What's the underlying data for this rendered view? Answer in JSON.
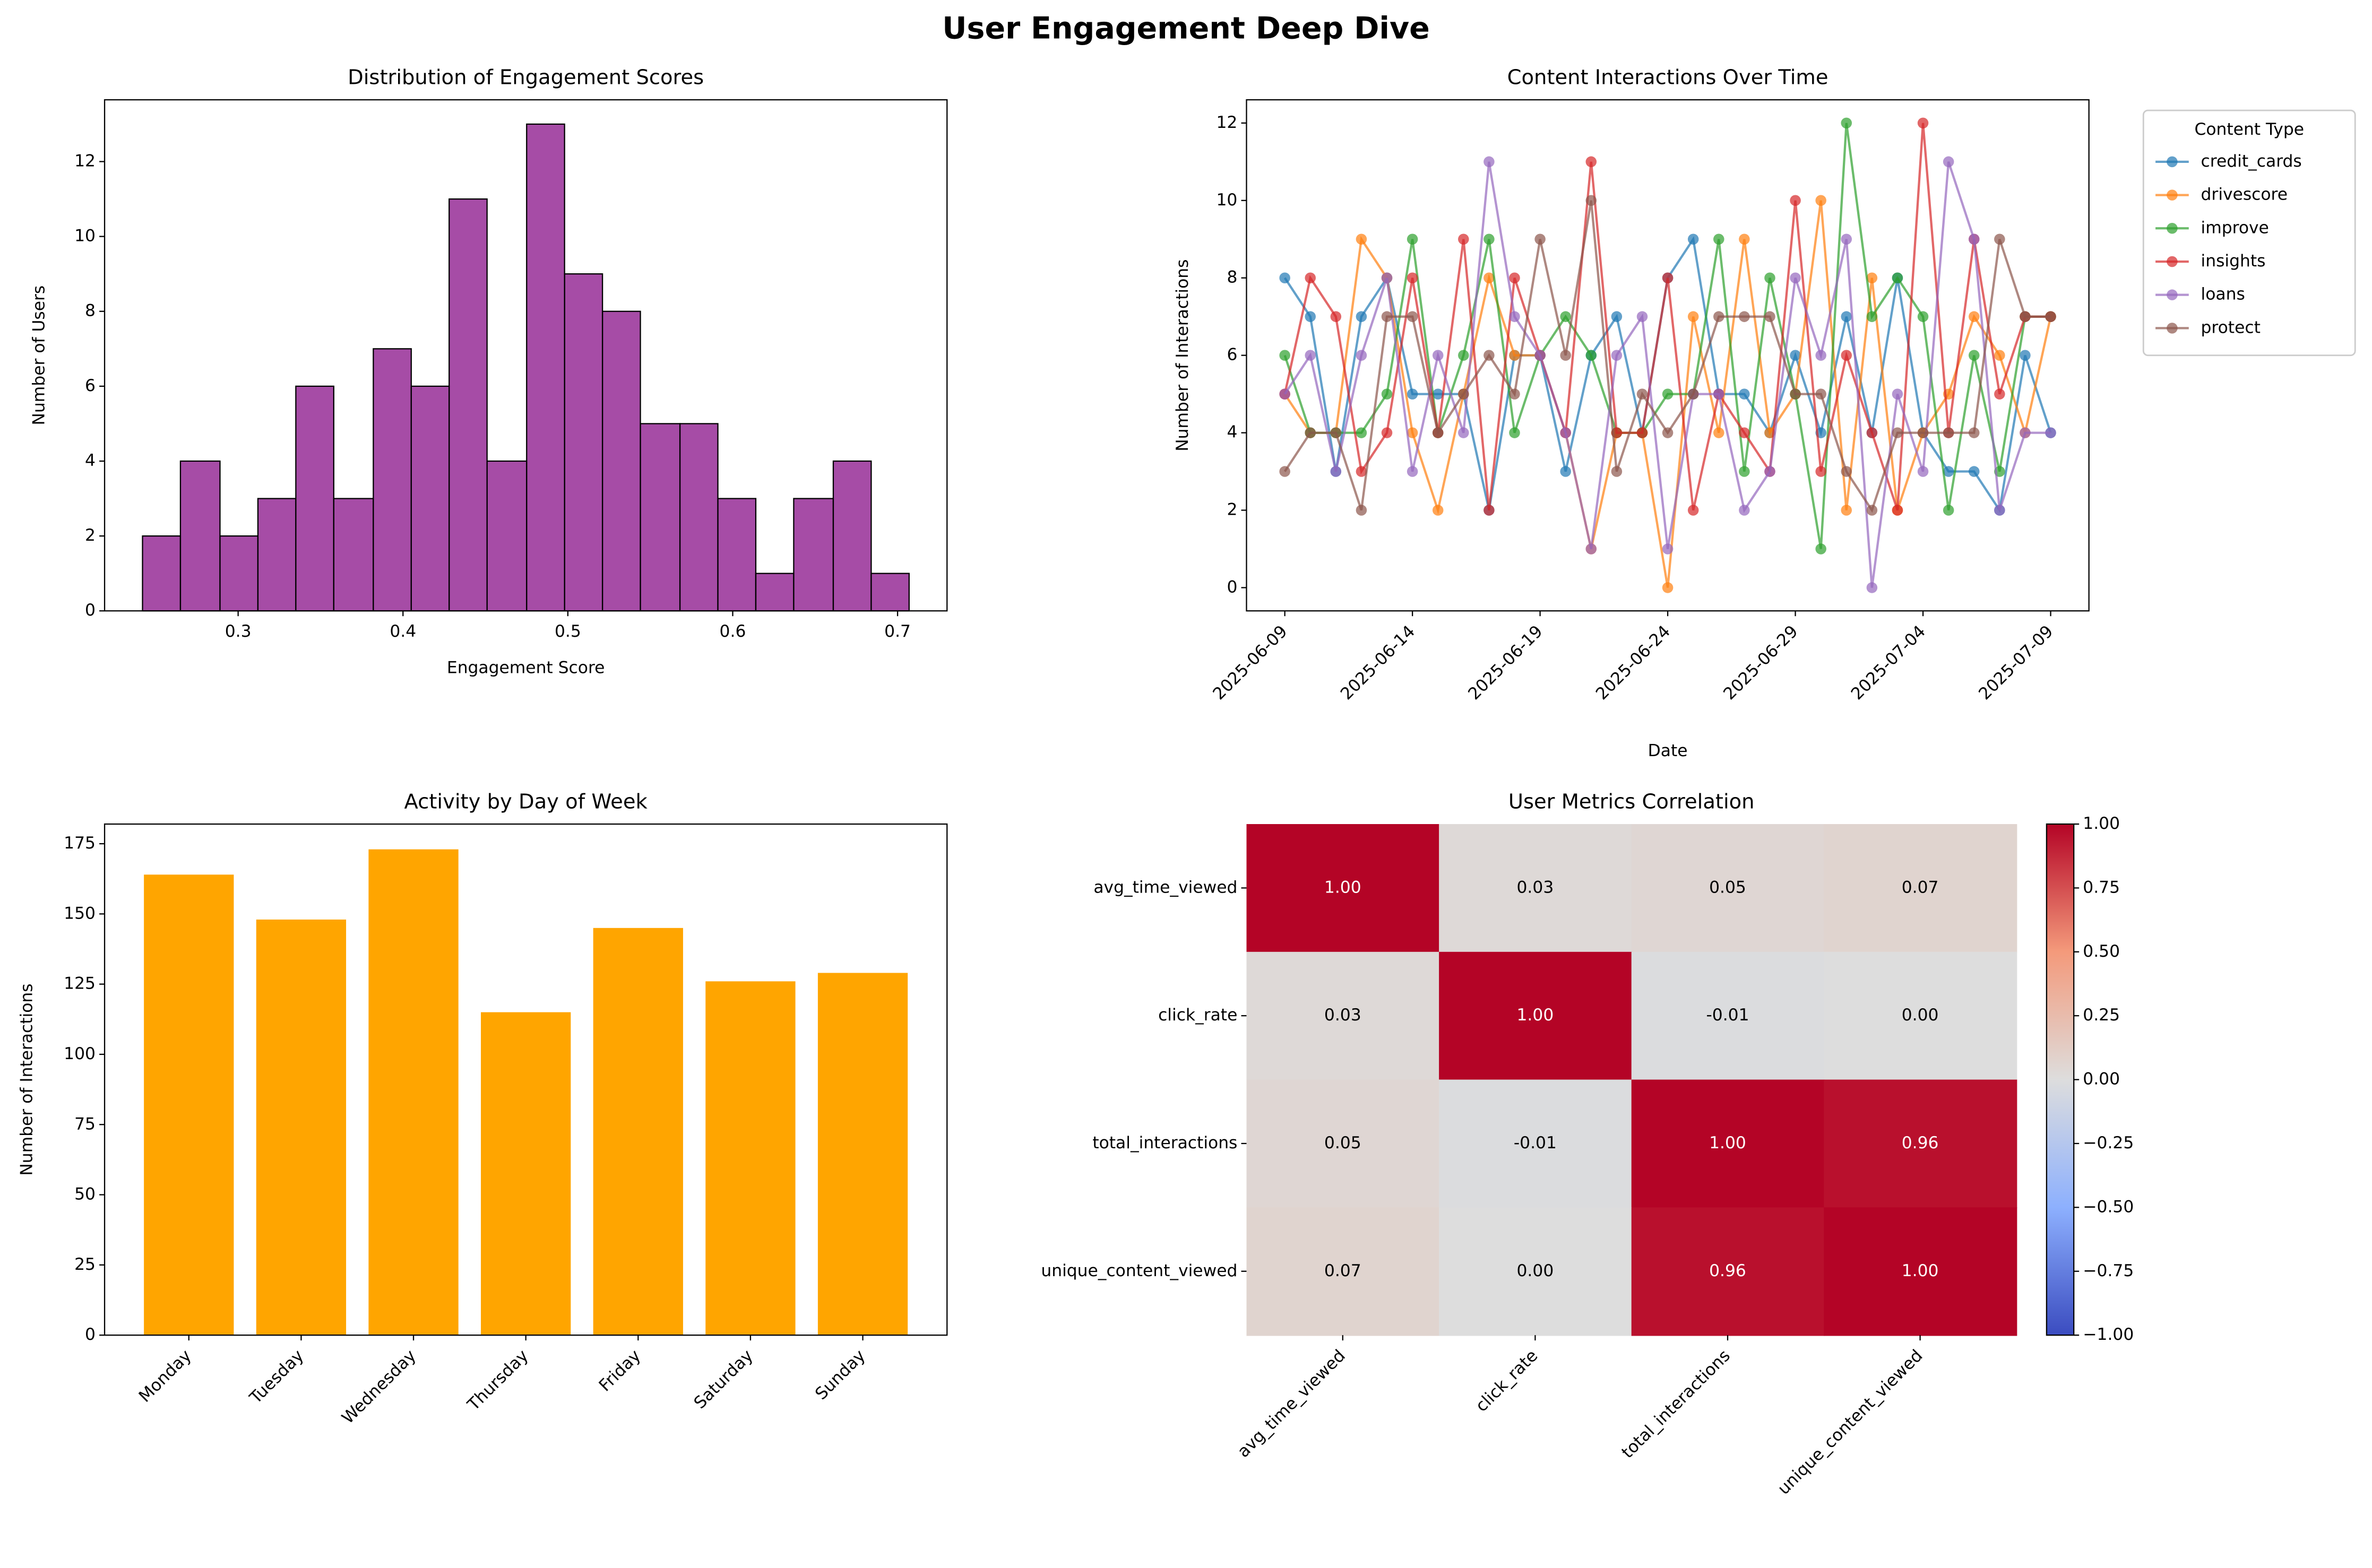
{
  "title": "User Engagement Deep Dive",
  "chart_data": [
    {
      "type": "histogram",
      "title": "Distribution of Engagement Scores",
      "xlabel": "Engagement Score",
      "ylabel": "Number of Users",
      "bins": [
        0.242,
        0.265,
        0.289,
        0.312,
        0.335,
        0.358,
        0.382,
        0.405,
        0.428,
        0.451,
        0.475,
        0.498,
        0.521,
        0.544,
        0.568,
        0.591,
        0.614,
        0.637,
        0.661,
        0.684,
        0.707
      ],
      "counts": [
        2,
        4,
        2,
        3,
        6,
        3,
        7,
        6,
        11,
        4,
        13,
        9,
        8,
        5,
        5,
        3,
        1,
        3,
        4,
        1
      ],
      "color": "#800080",
      "alpha": 0.7,
      "edgecolor": "#000000",
      "xlim": [
        0.219,
        0.73
      ],
      "xticks": [
        0.3,
        0.4,
        0.5,
        0.6,
        0.7
      ],
      "ylim": [
        0,
        13.65
      ],
      "yticks": [
        0,
        2,
        4,
        6,
        8,
        10,
        12
      ]
    },
    {
      "type": "line",
      "title": "Content Interactions Over Time",
      "xlabel": "Date",
      "ylabel": "Number of Interactions",
      "x": [
        "2025-06-09",
        "2025-06-10",
        "2025-06-11",
        "2025-06-12",
        "2025-06-13",
        "2025-06-14",
        "2025-06-15",
        "2025-06-16",
        "2025-06-17",
        "2025-06-18",
        "2025-06-19",
        "2025-06-20",
        "2025-06-21",
        "2025-06-22",
        "2025-06-23",
        "2025-06-24",
        "2025-06-25",
        "2025-06-26",
        "2025-06-27",
        "2025-06-28",
        "2025-06-29",
        "2025-06-30",
        "2025-07-01",
        "2025-07-02",
        "2025-07-03",
        "2025-07-04",
        "2025-07-05",
        "2025-07-06",
        "2025-07-07",
        "2025-07-08",
        "2025-07-09"
      ],
      "series": [
        {
          "name": "credit_cards",
          "color": "#1f77b4",
          "values": [
            8,
            7,
            3,
            7,
            8,
            5,
            5,
            5,
            2,
            6,
            6,
            3,
            6,
            7,
            4,
            8,
            9,
            5,
            5,
            4,
            6,
            4,
            7,
            4,
            8,
            4,
            3,
            3,
            2,
            6,
            4
          ]
        },
        {
          "name": "drivescore",
          "color": "#ff7f0e",
          "values": [
            5,
            4,
            4,
            9,
            8,
            4,
            2,
            5,
            8,
            6,
            6,
            4,
            1,
            4,
            4,
            0,
            7,
            4,
            9,
            4,
            5,
            10,
            2,
            8,
            2,
            4,
            5,
            7,
            6,
            4,
            7
          ]
        },
        {
          "name": "improve",
          "color": "#2ca02c",
          "values": [
            6,
            4,
            4,
            4,
            5,
            9,
            4,
            6,
            9,
            4,
            6,
            7,
            6,
            4,
            4,
            5,
            5,
            9,
            3,
            8,
            5,
            1,
            12,
            7,
            8,
            7,
            2,
            6,
            3,
            7,
            7
          ]
        },
        {
          "name": "insights",
          "color": "#d62728",
          "values": [
            5,
            8,
            7,
            3,
            4,
            8,
            4,
            9,
            2,
            8,
            6,
            4,
            11,
            4,
            4,
            8,
            2,
            5,
            4,
            3,
            10,
            3,
            6,
            4,
            2,
            12,
            4,
            9,
            5,
            7,
            7
          ]
        },
        {
          "name": "loans",
          "color": "#9467bd",
          "values": [
            5,
            6,
            3,
            6,
            8,
            3,
            6,
            4,
            11,
            7,
            6,
            4,
            1,
            6,
            7,
            1,
            5,
            5,
            2,
            3,
            8,
            6,
            9,
            0,
            5,
            3,
            11,
            9,
            2,
            4,
            4
          ]
        },
        {
          "name": "protect",
          "color": "#8c564b",
          "values": [
            3,
            4,
            4,
            2,
            7,
            7,
            4,
            5,
            6,
            5,
            9,
            6,
            10,
            3,
            5,
            4,
            5,
            7,
            7,
            7,
            5,
            5,
            3,
            2,
            4,
            4,
            4,
            4,
            9,
            7,
            7
          ]
        }
      ],
      "alpha": 0.7,
      "legend_title": "Content Type",
      "legend": "outside upper right",
      "xlim": [
        "2025-06-07T12:00",
        "2025-07-10T12:00"
      ],
      "xticks": [
        "2025-06-09",
        "2025-06-14",
        "2025-06-19",
        "2025-06-24",
        "2025-06-29",
        "2025-07-04",
        "2025-07-09"
      ],
      "ylim": [
        -0.6,
        12.6
      ],
      "yticks": [
        0,
        2,
        4,
        6,
        8,
        10,
        12
      ]
    },
    {
      "type": "bar",
      "title": "Activity by Day of Week",
      "ylabel": "Number of Interactions",
      "categories": [
        "Monday",
        "Tuesday",
        "Wednesday",
        "Thursday",
        "Friday",
        "Saturday",
        "Sunday"
      ],
      "values": [
        164,
        148,
        173,
        115,
        145,
        126,
        129
      ],
      "color": "#ffa500",
      "ylim": [
        0,
        182
      ],
      "yticks": [
        0,
        25,
        50,
        75,
        100,
        125,
        150,
        175
      ]
    },
    {
      "type": "heatmap",
      "title": "User Metrics Correlation",
      "labels": [
        "avg_time_viewed",
        "click_rate",
        "total_interactions",
        "unique_content_viewed"
      ],
      "values": [
        [
          1,
          0.03,
          0.05,
          0.07
        ],
        [
          0.03,
          1,
          -0.01,
          0
        ],
        [
          0.05,
          -0.01,
          1,
          0.96
        ],
        [
          0.07,
          0,
          0.96,
          1
        ]
      ],
      "value_labels": [
        [
          "1.00",
          "0.03",
          "0.05",
          "0.07"
        ],
        [
          "0.03",
          "1.00",
          "-0.01",
          "0.00"
        ],
        [
          "0.05",
          "-0.01",
          "1.00",
          "0.96"
        ],
        [
          "0.07",
          "0.00",
          "0.96",
          "1.00"
        ]
      ],
      "colormap": "coolwarm",
      "clim": [
        -1,
        1
      ],
      "cticks": [
        {
          "value": -1,
          "label": "−1.00"
        },
        {
          "value": -0.75,
          "label": "−0.75"
        },
        {
          "value": -0.5,
          "label": "−0.50"
        },
        {
          "value": -0.25,
          "label": "−0.25"
        },
        {
          "value": 0,
          "label": "0.00"
        },
        {
          "value": 0.25,
          "label": "0.25"
        },
        {
          "value": 0.5,
          "label": "0.50"
        },
        {
          "value": 0.75,
          "label": "0.75"
        },
        {
          "value": 1,
          "label": "1.00"
        }
      ]
    }
  ]
}
